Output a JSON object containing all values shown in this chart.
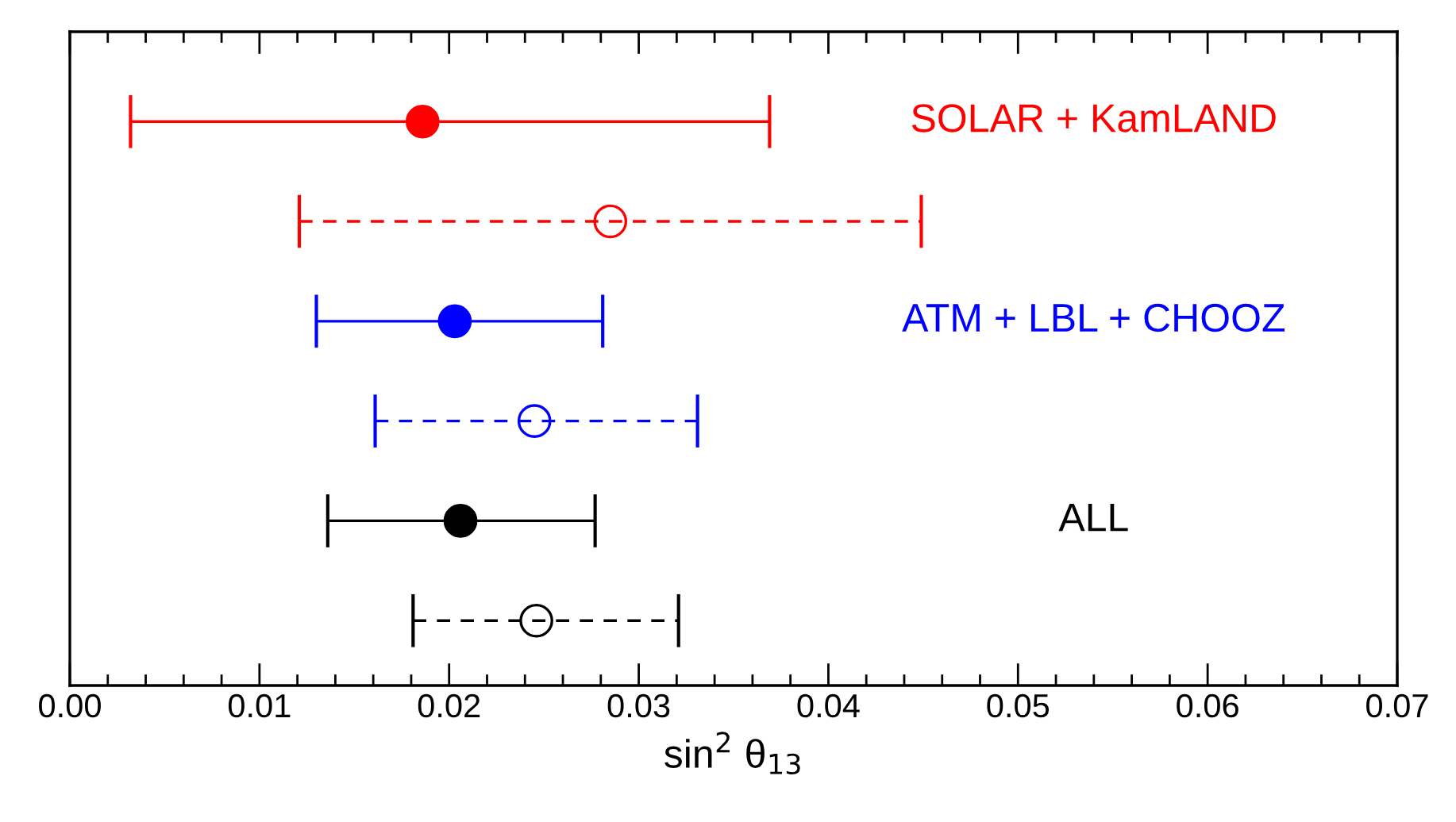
{
  "chart_data": {
    "type": "scatter",
    "orientation": "horizontal",
    "xlabel": "sin$^{2}$ θ$_{13}$",
    "categories": [
      null,
      null,
      null,
      null,
      null,
      null
    ],
    "xlim": [
      0,
      0.07
    ],
    "xticks": [
      {
        "value": 0,
        "label": "0.00"
      },
      0.01,
      0.02,
      0.03,
      0.04,
      0.05,
      0.06,
      0.07
    ],
    "grid": false,
    "legend": false,
    "marker": "circle",
    "series": [
      {
        "name": "SOLAR + KamLAND",
        "color": "#ff0000",
        "line_style": "solid",
        "values": [
          0.0186,
          null,
          null,
          null,
          null,
          null
        ],
        "errors": [
          [
            0.0032,
            0.0369
          ],
          null,
          null,
          null,
          null,
          null
        ]
      },
      {
        "color": "#ff0000",
        "line_style": "dashed",
        "values": [
          null,
          0.0285,
          null,
          null,
          null,
          null
        ],
        "errors": [
          null,
          [
            0.0121,
            0.0449
          ],
          null,
          null,
          null,
          null
        ]
      },
      {
        "name": "ATM + LBL + CHOOZ",
        "color": "#0000ff",
        "line_style": "solid",
        "values": [
          null,
          null,
          0.0203,
          null,
          null,
          null
        ],
        "errors": [
          null,
          null,
          [
            0.013,
            0.0281
          ],
          null,
          null,
          null
        ]
      },
      {
        "color": "#0000ff",
        "line_style": "dashed",
        "values": [
          null,
          null,
          null,
          0.0245,
          null,
          null
        ],
        "errors": [
          null,
          null,
          null,
          [
            0.0161,
            0.0331
          ],
          null,
          null
        ]
      },
      {
        "name": "ALL",
        "color": "#000000",
        "line_style": "solid",
        "values": [
          null,
          null,
          null,
          null,
          0.0206,
          null
        ],
        "errors": [
          null,
          null,
          null,
          null,
          [
            0.0136,
            0.0277
          ],
          null
        ]
      },
      {
        "color": "#000000",
        "line_style": "dashed",
        "values": [
          null,
          null,
          null,
          null,
          null,
          0.0246
        ],
        "errors": [
          null,
          null,
          null,
          null,
          null,
          [
            0.0181,
            0.0321
          ]
        ]
      }
    ]
  }
}
